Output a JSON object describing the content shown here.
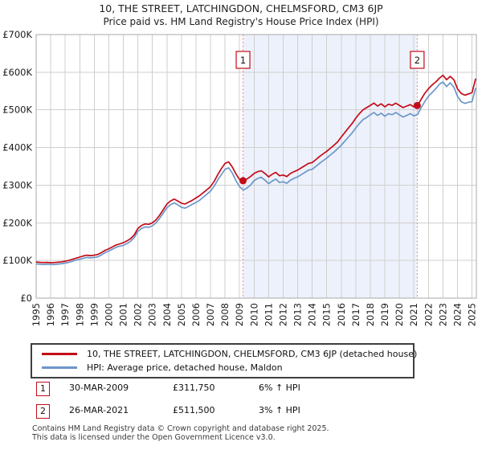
{
  "header": {
    "title": "10, THE STREET, LATCHINGDON, CHELMSFORD, CM3 6JP",
    "subtitle": "Price paid vs. HM Land Registry's House Price Index (HPI)"
  },
  "colors": {
    "property_line": "#c30b18",
    "hpi_line": "#6b96c9",
    "sale_marker": "#c30b18",
    "sale_dashed_line": "#ef8585",
    "highlight_band": "#edf1fb",
    "grid": "#cfcfcf",
    "plot_border": "#a8a8a8",
    "marker_box_border": "#c30b18",
    "axis_text": "#1a1a1a",
    "footer_text": "#3a3a3a"
  },
  "chart_data": {
    "type": "line",
    "title": "10, THE STREET, LATCHINGDON, CHELMSFORD, CM3 6JP",
    "subtitle": "Price paid vs. HM Land Registry's House Price Index (HPI)",
    "grid": true,
    "legend_position": "bottom",
    "x_axis": {
      "label": "",
      "range": [
        1995,
        2025.3
      ],
      "tick_labels": [
        "1995",
        "1996",
        "1997",
        "1998",
        "1999",
        "2000",
        "2001",
        "2002",
        "2003",
        "2004",
        "2005",
        "2006",
        "2007",
        "2008",
        "2009",
        "2010",
        "2011",
        "2012",
        "2013",
        "2014",
        "2015",
        "2016",
        "2017",
        "2018",
        "2019",
        "2020",
        "2021",
        "2022",
        "2023",
        "2024",
        "2025"
      ]
    },
    "y_axis": {
      "label": "",
      "range": [
        0,
        700000
      ],
      "tick_values": [
        0,
        100000,
        200000,
        300000,
        400000,
        500000,
        600000,
        700000
      ],
      "tick_labels": [
        "£0",
        "£100K",
        "£200K",
        "£300K",
        "£400K",
        "£500K",
        "£600K",
        "£700K"
      ]
    },
    "highlight_band": {
      "from_x": 2009.24,
      "to_x": 2021.23
    },
    "x_start": 1995.0,
    "x_step_years": 0.25,
    "series": [
      {
        "name": "10, THE STREET, LATCHINGDON, CHELMSFORD, CM3 6JP (detached house)",
        "color": "#c30b18",
        "values": [
          96000,
          95000,
          94500,
          95000,
          94000,
          94500,
          95500,
          96500,
          98000,
          100000,
          103000,
          106000,
          109000,
          112000,
          114000,
          113000,
          114000,
          116000,
          121000,
          127000,
          131000,
          136000,
          141000,
          144000,
          147000,
          152000,
          158000,
          168000,
          185000,
          193000,
          197000,
          196000,
          200000,
          208000,
          220000,
          235000,
          250000,
          258000,
          263000,
          258000,
          252000,
          250000,
          255000,
          260000,
          266000,
          272000,
          280000,
          288000,
          296000,
          310000,
          328000,
          344000,
          358000,
          362000,
          348000,
          330000,
          315000,
          311750,
          316000,
          323000,
          331000,
          336000,
          338000,
          331000,
          322000,
          329000,
          334000,
          325000,
          327000,
          323000,
          331000,
          336000,
          340000,
          346000,
          352000,
          358000,
          360000,
          368000,
          376000,
          383000,
          390000,
          398000,
          406000,
          415000,
          428000,
          440000,
          452000,
          464000,
          478000,
          490000,
          500000,
          506000,
          512000,
          518000,
          510000,
          516000,
          508000,
          515000,
          512000,
          518000,
          512000,
          506000,
          510000,
          514000,
          508000,
          511500,
          528000,
          544000,
          556000,
          566000,
          574000,
          584000,
          592000,
          580000,
          589000,
          580000,
          556000,
          544000,
          539000,
          542000,
          546000,
          583000
        ]
      },
      {
        "name": "HPI: Average price, detached house, Maldon",
        "color": "#6b96c9",
        "values": [
          91000,
          90000,
          89500,
          90000,
          89000,
          89500,
          90500,
          91500,
          93000,
          95000,
          98000,
          101000,
          103000,
          106000,
          108000,
          107000,
          108000,
          110000,
          115000,
          121000,
          125000,
          130000,
          135000,
          138000,
          140000,
          145000,
          151000,
          161000,
          177000,
          185000,
          189000,
          188000,
          192000,
          200000,
          212000,
          226000,
          240000,
          248000,
          253000,
          248000,
          241000,
          239000,
          244000,
          249000,
          254000,
          260000,
          268000,
          276000,
          284000,
          297000,
          314000,
          328000,
          342000,
          346000,
          332000,
          312000,
          296000,
          287000,
          292000,
          300000,
          312000,
          318000,
          321000,
          313000,
          304000,
          311000,
          316000,
          307000,
          309000,
          305000,
          313000,
          318000,
          322000,
          328000,
          334000,
          340000,
          342000,
          350000,
          358000,
          365000,
          372000,
          380000,
          388000,
          397000,
          406000,
          417000,
          428000,
          439000,
          452000,
          464000,
          474000,
          480000,
          487000,
          493000,
          485000,
          491000,
          483000,
          490000,
          487000,
          493000,
          487000,
          481000,
          485000,
          490000,
          484000,
          488000,
          506000,
          522000,
          536000,
          546000,
          556000,
          568000,
          574000,
          562000,
          572000,
          560000,
          536000,
          522000,
          517000,
          520000,
          522000,
          558000
        ]
      }
    ],
    "sale_points": [
      {
        "label": "1",
        "x": 2009.24,
        "value": 311750
      },
      {
        "label": "2",
        "x": 2021.23,
        "value": 511500
      }
    ]
  },
  "legend": {
    "items": [
      {
        "label": "10, THE STREET, LATCHINGDON, CHELMSFORD, CM3 6JP (detached house)",
        "color": "#c30b18"
      },
      {
        "label": "HPI: Average price, detached house, Maldon",
        "color": "#6b96c9"
      }
    ]
  },
  "transactions": [
    {
      "marker": "1",
      "date": "30-MAR-2009",
      "price": "£311,750",
      "hpi_delta": "6% ↑ HPI"
    },
    {
      "marker": "2",
      "date": "26-MAR-2021",
      "price": "£511,500",
      "hpi_delta": "3% ↑ HPI"
    }
  ],
  "footer": {
    "line1": "Contains HM Land Registry data © Crown copyright and database right 2025.",
    "line2": "This data is licensed under the Open Government Licence v3.0."
  }
}
